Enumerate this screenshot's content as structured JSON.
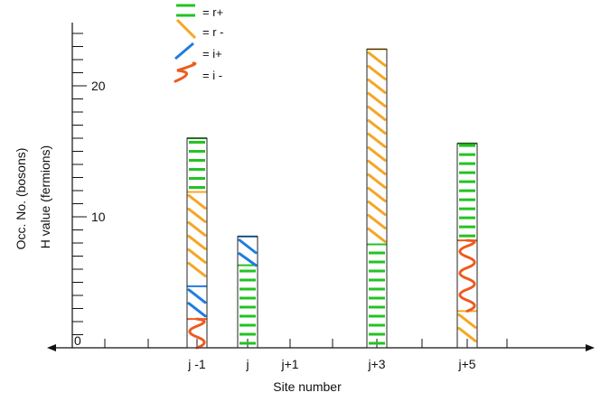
{
  "chart_data": {
    "type": "bar",
    "xlabel": "Site number",
    "ylabel_lines": [
      "Occ. No. (bosons)",
      "H value (fermions)"
    ],
    "ylim": [
      0,
      25
    ],
    "y_tick_labels": [
      "0",
      "10",
      "20"
    ],
    "x_tick_labels": [
      "j -1",
      "j",
      "j+1",
      "j+3",
      "j+5"
    ],
    "legend": [
      {
        "key": "r_plus",
        "label": "= r+",
        "color": "#22c322",
        "pattern": "horizontal-dash"
      },
      {
        "key": "r_minus",
        "label": "= r -",
        "color": "#f5a623",
        "pattern": "diagonal-slash"
      },
      {
        "key": "i_plus",
        "label": "= i+",
        "color": "#1f7de0",
        "pattern": "diagonal-slash"
      },
      {
        "key": "i_minus",
        "label": "= i -",
        "color": "#ee5a1e",
        "pattern": "wave"
      }
    ],
    "bars": [
      {
        "site": "j -1",
        "segments": [
          {
            "type": "i_minus",
            "from": 0,
            "to": 2.2
          },
          {
            "type": "i_plus",
            "from": 2.2,
            "to": 4.7
          },
          {
            "type": "r_minus",
            "from": 4.7,
            "to": 11.9
          },
          {
            "type": "r_plus",
            "from": 11.9,
            "to": 16
          }
        ]
      },
      {
        "site": "j",
        "segments": [
          {
            "type": "r_plus",
            "from": 0,
            "to": 6.3
          },
          {
            "type": "i_plus",
            "from": 6.3,
            "to": 8.5
          }
        ]
      },
      {
        "site": "j+1",
        "segments": []
      },
      {
        "site": "j+3",
        "segments": [
          {
            "type": "r_plus",
            "from": 0,
            "to": 7.9
          },
          {
            "type": "r_minus",
            "from": 7.9,
            "to": 22.8
          }
        ]
      },
      {
        "site": "j+5",
        "segments": [
          {
            "type": "r_minus",
            "from": 0,
            "to": 2.8
          },
          {
            "type": "i_minus",
            "from": 2.8,
            "to": 8.2
          },
          {
            "type": "r_plus",
            "from": 8.2,
            "to": 15.6
          }
        ]
      }
    ]
  }
}
